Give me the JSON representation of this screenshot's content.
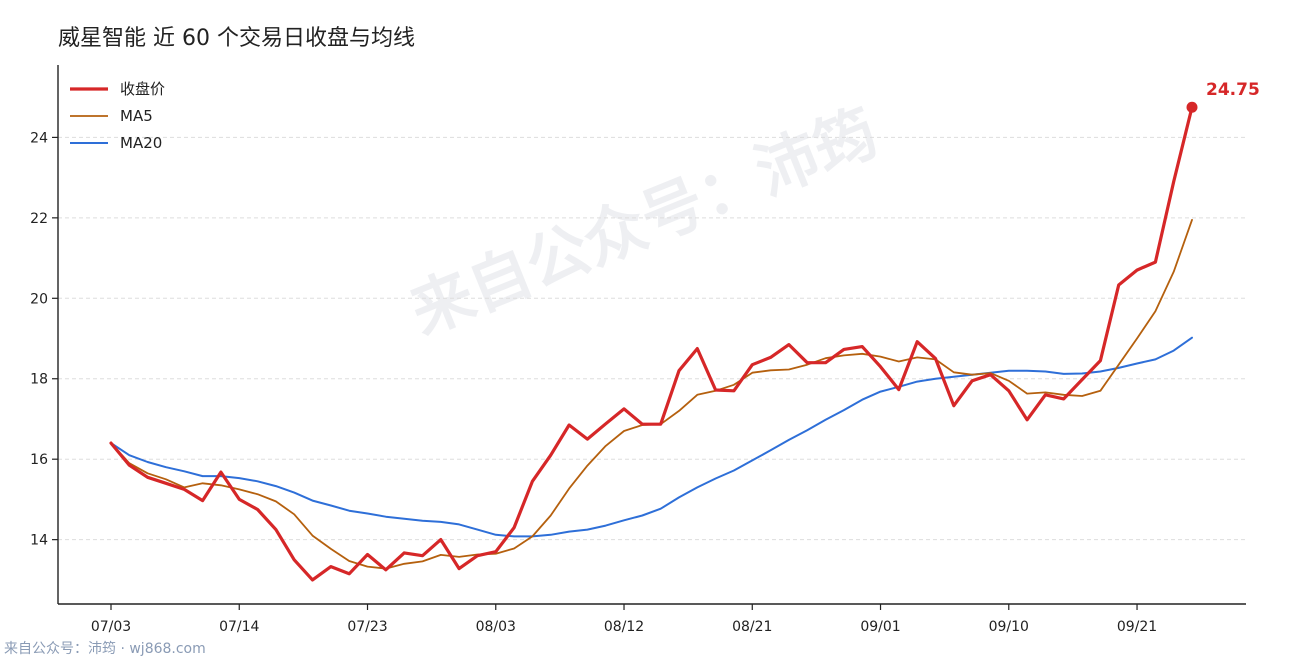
{
  "chart_data": {
    "type": "line",
    "title": "威星智能 近 60 个交易日收盘与均线",
    "xlabel": "",
    "ylabel": "",
    "ylim": [
      12.4,
      25.8
    ],
    "yticks": [
      14,
      16,
      18,
      20,
      22,
      24
    ],
    "grid": "horizontal dashed",
    "legend": "top-left",
    "x_ticks": [
      "07/03",
      "07/14",
      "07/23",
      "08/03",
      "08/12",
      "08/21",
      "09/01",
      "09/10",
      "09/21"
    ],
    "tick_index": [
      0,
      7,
      14,
      21,
      28,
      35,
      42,
      49,
      56
    ],
    "last_value_label": "24.75",
    "series": [
      {
        "name": "收盘价",
        "color": "#d62728",
        "values": [
          16.4,
          15.85,
          15.55,
          15.4,
          15.25,
          14.97,
          15.68,
          15.0,
          14.75,
          14.25,
          13.5,
          13.0,
          13.33,
          13.15,
          13.63,
          13.25,
          13.67,
          13.6,
          14.0,
          13.28,
          13.6,
          13.7,
          14.3,
          15.45,
          16.1,
          16.85,
          16.5,
          16.88,
          17.25,
          16.87,
          16.87,
          18.2,
          18.75,
          17.72,
          17.7,
          18.35,
          18.53,
          18.85,
          18.4,
          18.4,
          18.73,
          18.8,
          18.3,
          17.73,
          18.92,
          18.5,
          17.33,
          17.95,
          18.1,
          17.7,
          16.98,
          17.6,
          17.5,
          17.98,
          18.45,
          20.33,
          20.7,
          20.9,
          22.9,
          24.75
        ]
      },
      {
        "name": "MA5",
        "color": "#b5600e",
        "values": [
          16.4,
          15.9,
          15.65,
          15.5,
          15.3,
          15.4,
          15.35,
          15.25,
          15.13,
          14.95,
          14.63,
          14.1,
          13.77,
          13.47,
          13.33,
          13.28,
          13.4,
          13.46,
          13.62,
          13.57,
          13.63,
          13.65,
          13.78,
          14.08,
          14.6,
          15.27,
          15.84,
          16.33,
          16.7,
          16.85,
          16.87,
          17.2,
          17.6,
          17.7,
          17.85,
          18.15,
          18.21,
          18.23,
          18.35,
          18.51,
          18.58,
          18.62,
          18.55,
          18.43,
          18.53,
          18.48,
          18.16,
          18.1,
          18.14,
          17.95,
          17.63,
          17.66,
          17.6,
          17.57,
          17.7,
          18.35,
          19.0,
          19.68,
          20.66,
          21.95
        ]
      },
      {
        "name": "MA20",
        "color": "#2e6fd8",
        "values": [
          16.4,
          16.1,
          15.93,
          15.8,
          15.7,
          15.58,
          15.58,
          15.53,
          15.45,
          15.33,
          15.17,
          14.97,
          14.85,
          14.72,
          14.65,
          14.57,
          14.52,
          14.47,
          14.44,
          14.38,
          14.25,
          14.12,
          14.08,
          14.08,
          14.12,
          14.2,
          14.25,
          14.35,
          14.48,
          14.6,
          14.77,
          15.05,
          15.3,
          15.52,
          15.72,
          15.97,
          16.22,
          16.48,
          16.72,
          16.98,
          17.22,
          17.48,
          17.68,
          17.8,
          17.93,
          18.0,
          18.05,
          18.1,
          18.15,
          18.2,
          18.2,
          18.18,
          18.12,
          18.13,
          18.18,
          18.27,
          18.38,
          18.48,
          18.7,
          19.02
        ]
      }
    ]
  },
  "watermark_text": "来自公众号：沛筠",
  "footer_text": "来自公众号：沛筠 · wj868.com"
}
